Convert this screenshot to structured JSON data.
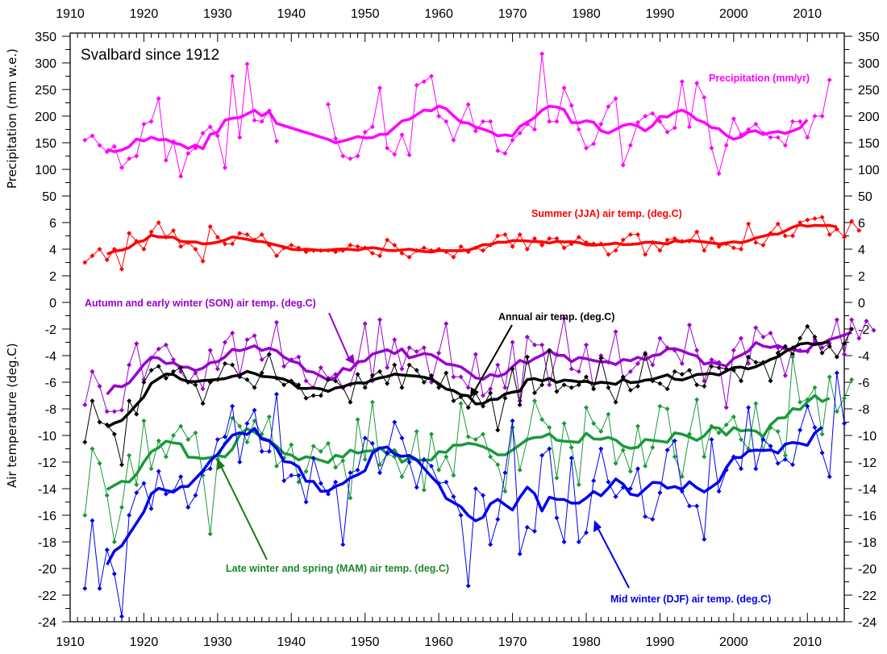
{
  "chart_data": {
    "type": "line",
    "title": "Svalbard since 1912",
    "xlabel": "",
    "ylabel_top": "Precipitation (mm w.e.)",
    "ylabel_bottom": "Air temperature (deg.C)",
    "xlim": [
      1910,
      2015
    ],
    "x_ticks": [
      1910,
      1920,
      1930,
      1940,
      1950,
      1960,
      1970,
      1980,
      1990,
      2000,
      2010
    ],
    "y_ticks_precip": [
      350,
      300,
      250,
      200,
      150,
      100,
      50
    ],
    "y_ticks_temp": [
      6,
      4,
      2,
      0,
      -2,
      -4,
      -6,
      -8,
      -10,
      -12,
      -14,
      -16,
      -18,
      -20,
      -22,
      -24
    ],
    "grid": false,
    "smoothing_window_years": 7,
    "series": [
      {
        "id": "precip",
        "name": "Precipitation (mm/yr)",
        "axis": "precip",
        "color": "#ff00ff",
        "start_year": 1912,
        "values": [
          155,
          163,
          145,
          133,
          143,
          103,
          120,
          125,
          185,
          190,
          233,
          117,
          152,
          87,
          130,
          140,
          168,
          180,
          163,
          103,
          275,
          160,
          298,
          192,
          190,
          210,
          153,
          null,
          null,
          null,
          null,
          null,
          null,
          222,
          158,
          125,
          120,
          125,
          170,
          180,
          253,
          140,
          128,
          165,
          127,
          258,
          265,
          275,
          200,
          190,
          155,
          190,
          222,
          172,
          190,
          190,
          135,
          130,
          155,
          168,
          185,
          175,
          317,
          190,
          190,
          253,
          220,
          175,
          140,
          148,
          185,
          218,
          233,
          108,
          145,
          188,
          200,
          205,
          190,
          170,
          178,
          265,
          180,
          262,
          235,
          140,
          92,
          145,
          195,
          165,
          175,
          185,
          168,
          160,
          160,
          145,
          190,
          190,
          160,
          200,
          200,
          268
        ]
      },
      {
        "id": "jja",
        "name": "Summer (JJA) air temp. (deg.C)",
        "axis": "temp",
        "color": "#ff0000",
        "start_year": 1912,
        "values": [
          3.0,
          3.5,
          4.0,
          3.2,
          4.0,
          2.5,
          5.2,
          4.6,
          4.0,
          5.3,
          6.0,
          4.9,
          5.4,
          4.2,
          4.5,
          4.0,
          3.1,
          5.7,
          4.9,
          4.4,
          4.4,
          5.2,
          5.1,
          4.7,
          5.1,
          4.3,
          3.5,
          4.1,
          4.3,
          4.1,
          3.8,
          3.9,
          3.9,
          3.9,
          3.8,
          3.9,
          4.3,
          4.2,
          4.1,
          3.7,
          3.5,
          4.7,
          4.3,
          3.7,
          3.4,
          3.9,
          4.1,
          3.9,
          4.0,
          3.8,
          3.4,
          4.2,
          3.8,
          4.1,
          3.9,
          4.3,
          5.0,
          5.1,
          4.2,
          5.1,
          4.0,
          4.8,
          4.3,
          4.8,
          4.8,
          4.1,
          4.4,
          4.9,
          4.5,
          4.4,
          4.4,
          3.6,
          3.9,
          4.7,
          5.1,
          5.1,
          3.6,
          4.5,
          3.9,
          4.7,
          4.8,
          4.6,
          4.6,
          5.3,
          3.9,
          4.8,
          4.2,
          4.4,
          4.1,
          4.0,
          5.9,
          4.5,
          4.3,
          5.2,
          5.9,
          5.0,
          5.0,
          6.0,
          6.2,
          6.3,
          6.4,
          5.1,
          5.5,
          4.9,
          6.1,
          5.4
        ]
      },
      {
        "id": "son",
        "name": "Autumn and early winter (SON) air temp. (deg.C)",
        "axis": "temp",
        "color": "#9900cc",
        "start_year": 1912,
        "values": [
          -7.7,
          -5.2,
          -6.3,
          -8.2,
          -8.2,
          -8.1,
          -4.7,
          -3.1,
          -5.8,
          -4.2,
          -3.5,
          -3.2,
          -4.3,
          -5.2,
          -6.0,
          -5.3,
          -6.5,
          -3.6,
          -5.0,
          -3.0,
          -2.3,
          -5.5,
          -2.8,
          -2.5,
          -4.3,
          -3.9,
          -1.5,
          -4.8,
          -4.3,
          -4.1,
          -5.9,
          -6.4,
          -4.9,
          -5.7,
          -5.4,
          -6.4,
          -6.2,
          -4.5,
          -1.6,
          -5.9,
          -1.3,
          -4.9,
          -2.8,
          -5.0,
          -3.4,
          -3.7,
          -3.4,
          -6.0,
          -3.8,
          -1.6,
          -5.6,
          -5.6,
          -6.4,
          -3.9,
          -7.0,
          -6.5,
          -4.7,
          -6.4,
          -3.0,
          -7.4,
          -2.6,
          -3.2,
          -3.2,
          -6.2,
          -3.9,
          -1.2,
          -5.0,
          -5.2,
          -3.2,
          -6.5,
          -4.0,
          -4.5,
          -2.2,
          -5.7,
          -5.2,
          -4.6,
          -3.8,
          -4.7,
          -2.7,
          -3.4,
          -3.6,
          -4.6,
          -1.7,
          -3.6,
          -5.9,
          -4.3,
          -4.5,
          -7.9,
          -3.6,
          -2.7,
          -4.6,
          -1.9,
          -2.6,
          -2.3,
          -3.4,
          -5.5,
          -3.4,
          -3.6,
          -3.7,
          -2.8,
          -3.4,
          -3.1,
          -1.3,
          -3.9,
          -1.3,
          -2.7,
          -1.4,
          -2.1
        ]
      },
      {
        "id": "annual",
        "name": "Annual air temp. (deg.C)",
        "axis": "temp",
        "color": "#000000",
        "start_year": 1912,
        "values": [
          -10.5,
          -7.4,
          -9.0,
          -9.2,
          -9.9,
          -12.2,
          -7.4,
          -8.4,
          -6.0,
          -5.1,
          -4.8,
          -5.7,
          -5.2,
          -4.9,
          -6.0,
          -6.2,
          -7.6,
          -6.0,
          -5.8,
          -4.6,
          -4.7,
          -5.6,
          -5.8,
          -6.4,
          -5.3,
          -3.9,
          -5.7,
          -6.2,
          -5.9,
          -6.2,
          -7.2,
          -7.0,
          -7.0,
          -5.8,
          -5.9,
          -6.4,
          -7.5,
          -5.4,
          -6.4,
          -5.5,
          -5.2,
          -6.1,
          -4.7,
          -6.4,
          -4.7,
          -5.1,
          -6.0,
          -5.5,
          -6.4,
          -5.3,
          -7.4,
          -7.1,
          -7.9,
          -6.8,
          -7.8,
          -6.8,
          -9.6,
          -7.2,
          -5.0,
          -7.7,
          -4.1,
          -6.8,
          -6.2,
          -3.6,
          -6.7,
          -6.2,
          -6.4,
          -6.2,
          -5.6,
          -6.5,
          -4.2,
          -6.4,
          -7.5,
          -5.6,
          -6.6,
          -6.3,
          -3.9,
          -5.9,
          -6.1,
          -6.5,
          -5.2,
          -5.4,
          -5.1,
          -6.2,
          -6.3,
          -4.8,
          -4.9,
          -5.0,
          -5.1,
          -5.9,
          -4.1,
          -4.5,
          -4.5,
          -5.9,
          -3.8,
          -3.3,
          -3.9,
          -2.7,
          -1.8,
          -2.6,
          -3.8,
          -3.3,
          -4.1,
          -3.1,
          -2.0
        ]
      },
      {
        "id": "mam",
        "name": "Late winter and spring (MAM) air temp. (deg.C)",
        "axis": "temp",
        "color": "#1a9a3a",
        "start_year": 1912,
        "values": [
          -16.0,
          -11.0,
          -12.1,
          -14.5,
          -18.0,
          -15.4,
          -11.5,
          -13.7,
          -8.9,
          -12.5,
          -10.4,
          -11.6,
          -10.0,
          -9.3,
          -10.3,
          -9.8,
          -13.0,
          -17.4,
          -11.8,
          -10.6,
          -8.7,
          -9.3,
          -10.5,
          -8.9,
          -9.9,
          -8.6,
          -12.3,
          -11.7,
          -10.7,
          -13.5,
          -12.7,
          -10.8,
          -11.2,
          -10.6,
          -12.4,
          -11.9,
          -14.7,
          -8.8,
          -11.8,
          -7.5,
          -12.2,
          -11.4,
          -11.6,
          -13.1,
          -12.0,
          -9.7,
          -14.1,
          -9.9,
          -12.6,
          -11.6,
          -13.0,
          -7.6,
          -10.1,
          -10.3,
          -9.9,
          -11.6,
          -12.2,
          -14.2,
          -9.4,
          -12.6,
          -10.3,
          -7.4,
          -8.8,
          -9.4,
          -13.2,
          -9.1,
          -10.9,
          -13.7,
          -7.9,
          -9.1,
          -9.7,
          -8.4,
          -12.1,
          -11.1,
          -12.7,
          -9.3,
          -12.3,
          -10.9,
          -7.8,
          -8.0,
          -11.6,
          -13.1,
          -9.9,
          -7.3,
          -11.6,
          -9.3,
          -9.8,
          -9.2,
          -8.6,
          -10.3,
          -11.0,
          -7.6,
          -11.1,
          -9.4,
          -9.7,
          -11.5,
          -4.1,
          -7.5,
          -7.3,
          -6.4,
          -9.9,
          -5.6,
          -8.2,
          -7.2,
          -5.8
        ]
      },
      {
        "id": "djf",
        "name": "Mid winter (DJF) air temp. (deg.C)",
        "axis": "temp",
        "color": "#0000ee",
        "start_year": 1912,
        "values": [
          -21.5,
          -16.4,
          -21.5,
          -18.6,
          -20.4,
          -23.6,
          -16.0,
          -14.3,
          -13.6,
          -15.5,
          -12.7,
          -14.4,
          -14.2,
          -13.1,
          -15.4,
          -14.5,
          -12.7,
          -12.5,
          -10.3,
          -10.1,
          -7.8,
          -12.0,
          -9.1,
          -8.1,
          -11.2,
          -11.2,
          -6.9,
          -13.4,
          -13.0,
          -13.0,
          -15.0,
          -11.7,
          -13.6,
          -14.4,
          -13.5,
          -18.2,
          -12.8,
          -12.6,
          -10.2,
          -10.6,
          -12.8,
          -11.3,
          -9.0,
          -10.2,
          -12.0,
          -13.9,
          -11.8,
          -12.3,
          -13.6,
          -13.5,
          -14.6,
          -16.0,
          -21.3,
          -14.0,
          -14.5,
          -18.2,
          -16.3,
          -12.8,
          -8.9,
          -18.9,
          -16.9,
          -17.2,
          -11.5,
          -11.0,
          -16.2,
          -18.0,
          -11.7,
          -18.0,
          -17.3,
          -13.4,
          -11.0,
          -13.5,
          -14.6,
          -13.9,
          -14.0,
          -12.5,
          -16.1,
          -16.3,
          -14.3,
          -11.1,
          -10.4,
          -14.2,
          -15.3,
          -15.3,
          -17.8,
          -10.3,
          -14.2,
          -12.6,
          -11.6,
          -12.5,
          -7.9,
          -12.5,
          -10.3,
          -10.8,
          -12.1,
          -11.8,
          -12.2,
          -9.6,
          -7.8,
          -9.4,
          -11.3,
          -13.1,
          -5.3,
          -9.1
        ]
      }
    ],
    "annotations": [
      {
        "id": "label-precip",
        "text": "Precipitation (mm/yr)",
        "color": "#ff00ff"
      },
      {
        "id": "label-jja",
        "text": "Summer (JJA) air temp. (deg.C)",
        "color": "#ff0000"
      },
      {
        "id": "label-son",
        "text": "Autumn and early winter (SON) air temp. (deg.C)",
        "color": "#9900cc"
      },
      {
        "id": "label-annual",
        "text": "Annual air temp. (deg.C)",
        "color": "#000000"
      },
      {
        "id": "label-mam",
        "text": "Late winter and spring (MAM) air temp. (deg.C)",
        "color": "#1a8a2a"
      },
      {
        "id": "label-djf",
        "text": "Mid winter (DJF) air temp. (deg.C)",
        "color": "#0000ee"
      }
    ]
  }
}
